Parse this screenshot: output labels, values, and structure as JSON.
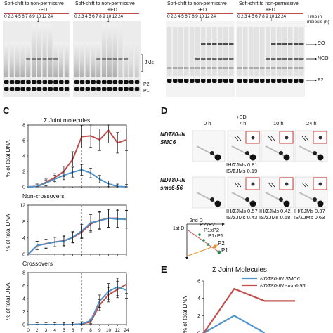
{
  "gels_top": {
    "left": {
      "shift_labels": [
        "Soft-shift to non-permissive",
        "Soft-shift to non-permissive"
      ],
      "cond_labels": [
        "-ED",
        "+ED"
      ],
      "lanes": "0 2 3 4 5 6 7 8 9 10 12 24",
      "lanes2": "0 2 3 4 5 6 7 8 9 10 12 24",
      "band_labels": [
        "JMs",
        "P2",
        "P1"
      ]
    },
    "right": {
      "shift_labels": [
        "Soft-shift to non-permissive",
        "Soft-shift to non-permissive"
      ],
      "cond_labels": [
        "-ED",
        "+ED"
      ],
      "lanes": "0 2 3 4 5 6 7 8 9 10 12 24",
      "lanes2": "0 2 3 4 5 6 7 8 9 10 12 24",
      "time_label": "Time in meiosis (h)",
      "band_labels": [
        "CO",
        "NCO",
        "P2"
      ]
    }
  },
  "panel_c": {
    "letter": "C",
    "ylabel": "% of total DNA",
    "xticks": [
      "0",
      "2",
      "3",
      "4",
      "5",
      "6",
      "7",
      "8",
      "9",
      "10",
      "12",
      "24"
    ]
  },
  "chart_data": [
    {
      "type": "line",
      "title": "Σ Joint molecules",
      "x": [
        0,
        2,
        3,
        4,
        5,
        6,
        7,
        8,
        9,
        10,
        12,
        24
      ],
      "ylim": [
        0,
        8
      ],
      "yticks": [
        0,
        2,
        4,
        6,
        8
      ],
      "series": [
        {
          "color": "#c0504d",
          "values": [
            0,
            0.05,
            0.6,
            1.2,
            2.0,
            3.6,
            6.5,
            6.6,
            6.1,
            7.3,
            5.7,
            6.1
          ]
        },
        {
          "color": "#4f93c9",
          "values": [
            0,
            0.05,
            0.5,
            1.0,
            1.5,
            1.9,
            2.2,
            1.8,
            1.0,
            0.4,
            0.05,
            0
          ]
        }
      ]
    },
    {
      "type": "line",
      "title": "Non-crossovers",
      "x": [
        0,
        2,
        3,
        4,
        5,
        6,
        7,
        8,
        9,
        10,
        12,
        24
      ],
      "ylim": [
        0,
        12
      ],
      "yticks": [
        0,
        4,
        8,
        12
      ],
      "series": [
        {
          "color": "#c0504d",
          "values": [
            0,
            2.1,
            2.6,
            3.0,
            3.3,
            4.1,
            5.4,
            7.4,
            8.3,
            8.8,
            8.8,
            8.5
          ]
        },
        {
          "color": "#4f93c9",
          "values": [
            0,
            2.2,
            2.5,
            3.0,
            3.2,
            4.2,
            5.7,
            7.7,
            8.2,
            8.8,
            8.6,
            8.6
          ]
        }
      ]
    },
    {
      "type": "line",
      "title": "Crossovers",
      "x": [
        0,
        2,
        3,
        4,
        5,
        6,
        7,
        8,
        9,
        10,
        12,
        24
      ],
      "ylim": [
        0,
        8
      ],
      "yticks": [
        0,
        2,
        4,
        6,
        8
      ],
      "series": [
        {
          "color": "#c0504d",
          "values": [
            0,
            0,
            0,
            0,
            0,
            0,
            0.1,
            0.4,
            3.0,
            4.6,
            5.4,
            6.2
          ]
        },
        {
          "color": "#4f93c9",
          "values": [
            0,
            0,
            0,
            0,
            0,
            0,
            0.1,
            0.6,
            3.6,
            5.1,
            5.8,
            5.3
          ]
        }
      ]
    },
    {
      "type": "line",
      "title": "Σ Joint Molecules",
      "ylabel": "% of total DNA",
      "ylim": [
        0,
        6
      ],
      "series": [
        {
          "name": "NDT80-IN SMC6",
          "color": "#4f93c9",
          "values": [
            0,
            2.0,
            0
          ]
        },
        {
          "name": "NDT80-IN smc6-56",
          "color": "#c0504d",
          "values": [
            0,
            5.1,
            3.7,
            3.7
          ]
        }
      ]
    }
  ],
  "panel_d": {
    "letter": "D",
    "col_headers": [
      "0 h",
      "+ED",
      "7 h",
      "10 h",
      "24 h"
    ],
    "row1_label": "NDT80-IN",
    "row1_gene": "SMC6",
    "row2_label": "NDT80-IN",
    "row2_gene": "smc6-56",
    "row1_stats": [
      "IH/ΣJMs 0.81",
      "IS/ΣJMs 0.19"
    ],
    "row2_stats": [
      "IH/ΣJMs 0.57",
      "IS/ΣJMs 0.43",
      "IH/ΣJMs 0.42",
      "IS/ΣJMs 0.58",
      "IH/ΣJMs 0.37",
      "IS/ΣJMs 0.63"
    ],
    "diagram": {
      "d1": "1st D",
      "d2": "2nd D",
      "labels": [
        "P2xP2",
        "P1xP2",
        "P1xP1",
        "P2",
        "P1"
      ]
    }
  },
  "panel_e": {
    "letter": "E"
  }
}
